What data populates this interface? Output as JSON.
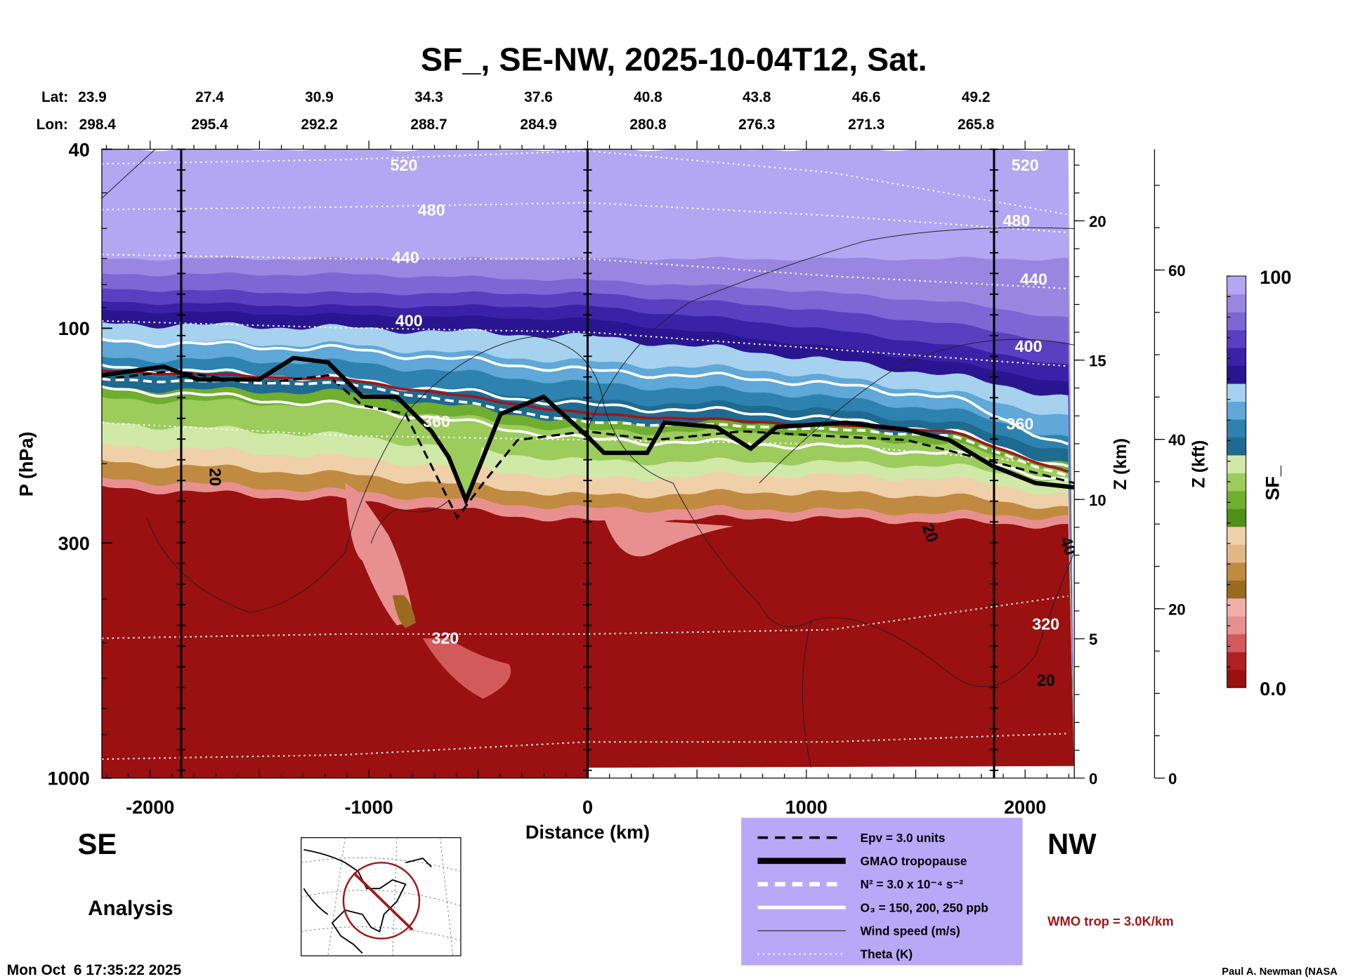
{
  "chart_data": {
    "type": "heatmap",
    "title": "SF_, SE-NW, 2025-10-04T12, Sat.",
    "xlabel": "Distance (km)",
    "ylabel": "P (hPa)",
    "y2label": "Z (km)",
    "y3label": "Z (kft)",
    "colorbar_label": "SF_",
    "colorbar_range": [
      0.0,
      100
    ],
    "colorbar_ticks": [
      "100",
      "0.0"
    ],
    "xlim": [
      -2225,
      2225
    ],
    "ylim": [
      1000,
      40
    ],
    "xticks": [
      -2000,
      -1000,
      0,
      1000,
      2000
    ],
    "xtick_labels": [
      "-2000",
      "-1000",
      "0",
      "1000",
      "2000"
    ],
    "yticks": [
      40,
      100,
      300,
      1000
    ],
    "ytick_labels": [
      "40",
      "100",
      "300",
      "1000"
    ],
    "zkm_ticks": [
      20,
      15,
      10,
      5,
      0
    ],
    "zkm_tick_labels": [
      "20",
      "15",
      "10",
      "5",
      "0"
    ],
    "zkft_ticks": [
      60,
      40,
      20,
      0
    ],
    "zkft_tick_labels": [
      "60",
      "40",
      "20",
      "0"
    ],
    "lat_label": "Lat:",
    "lon_label": "Lon:",
    "lat": [
      "23.9",
      "27.4",
      "30.9",
      "34.3",
      "37.6",
      "40.8",
      "43.8",
      "46.6",
      "49.2"
    ],
    "lon": [
      "298.4",
      "295.4",
      "292.2",
      "288.7",
      "284.9",
      "280.8",
      "276.3",
      "271.3",
      "265.8"
    ],
    "theta_labels": [
      "520",
      "480",
      "440",
      "400",
      "360",
      "320",
      "520",
      "480",
      "440",
      "400",
      "360",
      "320"
    ],
    "wind_labels": [
      "20",
      "20",
      "40",
      "20"
    ],
    "legend": [
      {
        "label": "Epv = 3.0 units",
        "style": "black-dashed"
      },
      {
        "label": "GMAO tropopause",
        "style": "black-thick"
      },
      {
        "label": "N² = 3.0 x 10⁻⁴ s⁻²",
        "style": "white-dashed"
      },
      {
        "label": "O₃ = 150, 200, 250 ppb",
        "style": "white-solid"
      },
      {
        "label": "Wind speed (m/s)",
        "style": "thin-dark"
      },
      {
        "label": "Theta (K)",
        "style": "white-dotted"
      }
    ],
    "legend_placement": "bottom-center",
    "wmo_label": "WMO trop = 3.0K/km"
  },
  "labels": {
    "se": "SE",
    "nw": "NW",
    "analysis": "Analysis",
    "timestamp": "Mon Oct  6 17:35:22 2025",
    "credit": "Paul A. Newman (NASA"
  },
  "colors": {
    "wmo": "#a01818",
    "legend_bg": "#b8a8f8",
    "scale": [
      "#9b1010",
      "#b02020",
      "#d25a5a",
      "#e89090",
      "#f0b0a8",
      "#9a6a20",
      "#c08a40",
      "#e0b888",
      "#f0d0a8",
      "#4f8f1a",
      "#6fae2e",
      "#9ccc5c",
      "#d0e8a8",
      "#1f6a90",
      "#2d82b0",
      "#5fa8d8",
      "#a6d2f0",
      "#2a1590",
      "#3a22a8",
      "#5a3fc0",
      "#7e66d4",
      "#9a86e0",
      "#b3a6f2"
    ]
  }
}
